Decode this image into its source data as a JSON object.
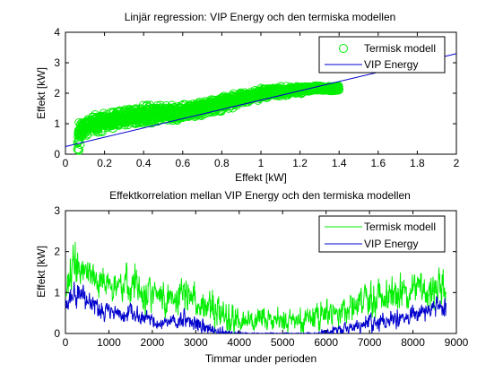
{
  "colors": {
    "thermal": "#00ee00",
    "vip": "#0000cc",
    "axes": "#000000",
    "background": "#ffffff"
  },
  "chart_data": [
    {
      "type": "scatter",
      "title": "Linjär regression: VIP Energy och den termiska modellen",
      "xlabel": "Effekt [kW]",
      "ylabel": "Effekt [kW]",
      "xlim": [
        0,
        2
      ],
      "ylim": [
        0,
        4
      ],
      "xticks": [
        "0",
        "0.2",
        "0.4",
        "0.6",
        "0.8",
        "1",
        "1.2",
        "1.4",
        "1.6",
        "1.8",
        "2"
      ],
      "yticks": [
        "0",
        "1",
        "2",
        "3",
        "4"
      ],
      "grid": false,
      "legend_position": "top-right",
      "legend": [
        "Termisk modell",
        "VIP Energy"
      ],
      "series": [
        {
          "name": "Termisk modell",
          "kind": "scatter",
          "marker": "circle",
          "x": [
            0.06,
            0.08,
            0.1,
            0.12,
            0.15,
            0.18,
            0.2,
            0.22,
            0.25,
            0.28,
            0.3,
            0.32,
            0.35,
            0.38,
            0.4,
            0.42,
            0.45,
            0.48,
            0.5,
            0.52,
            0.55,
            0.58,
            0.6,
            0.62,
            0.65,
            0.68,
            0.7,
            0.72,
            0.75,
            0.78,
            0.8,
            0.82,
            0.85,
            0.88,
            0.9,
            0.92,
            0.95,
            0.98,
            1.0,
            1.02,
            1.05,
            1.08,
            1.1,
            1.12,
            1.15,
            1.18,
            1.2,
            1.22,
            1.25,
            1.28,
            1.3,
            1.32,
            1.35,
            1.38,
            1.4
          ],
          "y_low": [
            0.1,
            0.3,
            0.4,
            0.45,
            0.5,
            0.55,
            0.6,
            0.62,
            0.65,
            0.7,
            0.72,
            0.75,
            0.78,
            0.8,
            0.82,
            0.85,
            0.88,
            0.9,
            0.92,
            0.95,
            0.98,
            1.0,
            1.02,
            1.05,
            1.08,
            1.1,
            1.12,
            1.15,
            1.2,
            1.25,
            1.3,
            1.35,
            1.4,
            1.45,
            1.5,
            1.55,
            1.6,
            1.65,
            1.7,
            1.72,
            1.75,
            1.78,
            1.8,
            1.82,
            1.85,
            1.88,
            1.9,
            1.95,
            2.0,
            2.05,
            2.05,
            2.05,
            2.0,
            2.0,
            2.05
          ],
          "y_high": [
            1.2,
            1.3,
            1.35,
            1.4,
            1.45,
            1.5,
            1.55,
            1.58,
            1.6,
            1.62,
            1.65,
            1.68,
            1.7,
            1.72,
            1.75,
            1.78,
            1.8,
            1.82,
            1.78,
            1.75,
            1.72,
            1.72,
            1.75,
            1.78,
            1.8,
            1.85,
            1.9,
            1.92,
            1.95,
            2.0,
            2.02,
            2.05,
            2.1,
            2.12,
            2.15,
            2.18,
            2.2,
            2.22,
            2.25,
            2.28,
            2.3,
            2.3,
            2.3,
            2.3,
            2.3,
            2.3,
            2.32,
            2.32,
            2.3,
            2.3,
            2.3,
            2.28,
            2.28,
            2.3,
            2.35
          ]
        },
        {
          "name": "VIP Energy",
          "kind": "line",
          "x": [
            0,
            2
          ],
          "y": [
            0.25,
            3.3
          ]
        }
      ]
    },
    {
      "type": "line",
      "title": "Effektkorrelation mellan VIP Energy och den termiska modellen",
      "xlabel": "Timmar under perioden",
      "ylabel": "Effekt [kW]",
      "xlim": [
        0,
        9000
      ],
      "ylim": [
        0,
        3
      ],
      "xticks": [
        "0",
        "1000",
        "2000",
        "3000",
        "4000",
        "5000",
        "6000",
        "7000",
        "8000",
        "9000"
      ],
      "yticks": [
        "0",
        "1",
        "2",
        "3"
      ],
      "grid": false,
      "legend_position": "top-right",
      "legend": [
        "Termisk modell",
        "VIP Energy"
      ],
      "series": [
        {
          "name": "Termisk modell",
          "kind": "line",
          "x": [
            0,
            250,
            500,
            750,
            1000,
            1250,
            1500,
            1750,
            2000,
            2250,
            2500,
            2750,
            3000,
            3250,
            3500,
            3750,
            4000,
            4250,
            4500,
            4750,
            5000,
            5250,
            5500,
            5750,
            6000,
            6250,
            6500,
            6750,
            7000,
            7250,
            7500,
            7750,
            8000,
            8250,
            8500,
            8750
          ],
          "y_mid": [
            1.1,
            1.6,
            1.5,
            1.3,
            1.2,
            1.1,
            1.3,
            1.1,
            1.0,
            0.9,
            0.85,
            1.0,
            0.8,
            0.6,
            0.5,
            0.4,
            0.35,
            0.3,
            0.3,
            0.3,
            0.3,
            0.3,
            0.35,
            0.4,
            0.5,
            0.55,
            0.6,
            0.7,
            0.8,
            0.9,
            1.0,
            1.0,
            1.1,
            1.1,
            1.2,
            1.2
          ],
          "y_amp": [
            0.3,
            0.8,
            0.5,
            0.45,
            0.5,
            0.45,
            0.5,
            0.5,
            0.45,
            0.45,
            0.45,
            0.55,
            0.5,
            0.45,
            0.45,
            0.4,
            0.35,
            0.3,
            0.3,
            0.3,
            0.3,
            0.3,
            0.35,
            0.35,
            0.4,
            0.4,
            0.4,
            0.45,
            0.45,
            0.45,
            0.5,
            0.5,
            0.45,
            0.45,
            0.55,
            0.5
          ]
        },
        {
          "name": "VIP Energy",
          "kind": "line",
          "x": [
            0,
            250,
            500,
            750,
            1000,
            1250,
            1500,
            1750,
            2000,
            2250,
            2500,
            2750,
            3000,
            3250,
            3500,
            3750,
            4000,
            4250,
            4500,
            4750,
            5000,
            5250,
            5500,
            5750,
            6000,
            6250,
            6500,
            6750,
            7000,
            7250,
            7500,
            7750,
            8000,
            8250,
            8500,
            8750
          ],
          "y_mid": [
            0.7,
            1.05,
            0.8,
            0.6,
            0.55,
            0.45,
            0.55,
            0.45,
            0.3,
            0.25,
            0.2,
            0.35,
            0.25,
            0.1,
            0.05,
            0.02,
            0.0,
            0.0,
            0.0,
            0.0,
            0.0,
            0.0,
            0.0,
            0.0,
            0.0,
            0.05,
            0.1,
            0.15,
            0.25,
            0.3,
            0.4,
            0.4,
            0.5,
            0.5,
            0.6,
            0.7
          ],
          "y_amp": [
            0.2,
            0.4,
            0.3,
            0.25,
            0.25,
            0.2,
            0.25,
            0.25,
            0.2,
            0.2,
            0.2,
            0.25,
            0.25,
            0.2,
            0.15,
            0.1,
            0.05,
            0.02,
            0.02,
            0.02,
            0.02,
            0.02,
            0.02,
            0.05,
            0.1,
            0.15,
            0.2,
            0.2,
            0.25,
            0.25,
            0.25,
            0.3,
            0.25,
            0.25,
            0.3,
            0.3
          ]
        }
      ]
    }
  ]
}
